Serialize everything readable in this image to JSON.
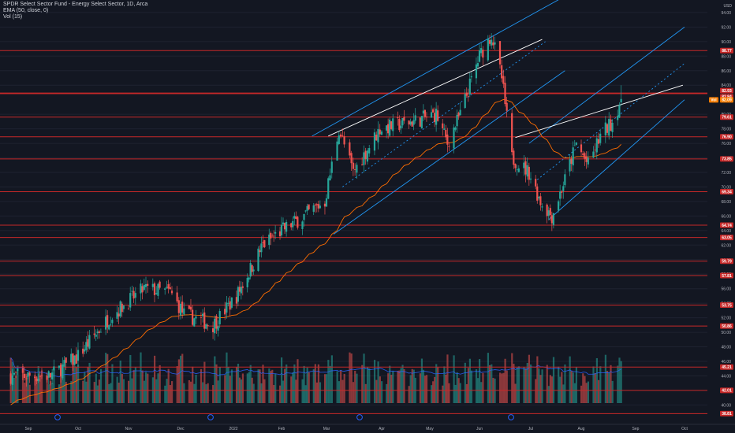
{
  "legend": {
    "title": "SPDR Select Sector Fund - Energy Select Sector, 1D, Arca",
    "ema": "EMA (50, close, 0)",
    "vol": "Vol (15)"
  },
  "price_axis": {
    "currency": "USD",
    "ticks": [
      "94.00",
      "92.00",
      "90.00",
      "88.00",
      "86.00",
      "84.00",
      "80.00",
      "78.00",
      "76.00",
      "74.00",
      "72.00",
      "70.00",
      "68.00",
      "66.00",
      "64.00",
      "62.00",
      "60.00",
      "58.00",
      "56.00",
      "54.00",
      "52.00",
      "50.00",
      "48.00",
      "46.00",
      "44.00",
      "42.00",
      "40.00"
    ],
    "levels": [
      "88.77",
      "82.93",
      "82.84",
      "79.61",
      "76.90",
      "73.85",
      "69.34",
      "64.74",
      "63.05",
      "59.79",
      "57.81",
      "53.75",
      "50.86",
      "45.21",
      "42.01",
      "38.81"
    ],
    "ema_tag": "Vol",
    "ema_value": "82.09"
  },
  "time_axis": {
    "labels": [
      "Sep",
      "Oct",
      "Nov",
      "Dec",
      "2022",
      "Feb",
      "Mar",
      "Apr",
      "May",
      "Jun",
      "Jul",
      "Aug",
      "Sep",
      "Oct"
    ]
  },
  "colors": {
    "background": "#131722",
    "up": "#26a69a",
    "down": "#ef5350",
    "level_line": "#c62828",
    "channel": "#2196f3",
    "ema": "#ff6d00",
    "trendline": "#ffffff",
    "vol_ma": "#2962ff"
  },
  "chart_data": {
    "type": "candlestick",
    "ylim": [
      38.2,
      95.4
    ],
    "ema_period": 50,
    "volume_ma_period": 15,
    "dividend_markers": [
      "Sep",
      "Dec",
      "Mar",
      "Jun"
    ],
    "anchors": [
      [
        "2021-08-23",
        44
      ],
      [
        "2021-09-15",
        44
      ],
      [
        "2021-09-30",
        46.5
      ],
      [
        "2021-10-20",
        52
      ],
      [
        "2021-11-10",
        56
      ],
      [
        "2021-11-25",
        55.5
      ],
      [
        "2021-12-03",
        52.5
      ],
      [
        "2021-12-20",
        51
      ],
      [
        "2022-01-03",
        55
      ],
      [
        "2022-01-20",
        62
      ],
      [
        "2022-02-01",
        64
      ],
      [
        "2022-02-15",
        66
      ],
      [
        "2022-02-28",
        68
      ],
      [
        "2022-03-08",
        78
      ],
      [
        "2022-03-16",
        72
      ],
      [
        "2022-03-31",
        78
      ],
      [
        "2022-04-20",
        79
      ],
      [
        "2022-05-05",
        80
      ],
      [
        "2022-05-12",
        76
      ],
      [
        "2022-05-20",
        80
      ],
      [
        "2022-06-01",
        88
      ],
      [
        "2022-06-08",
        91
      ],
      [
        "2022-06-14",
        85
      ],
      [
        "2022-06-20",
        74
      ],
      [
        "2022-06-30",
        72
      ],
      [
        "2022-07-07",
        68
      ],
      [
        "2022-07-14",
        66
      ],
      [
        "2022-07-22",
        71
      ],
      [
        "2022-07-29",
        76
      ],
      [
        "2022-08-05",
        73
      ],
      [
        "2022-08-12",
        77
      ],
      [
        "2022-08-19",
        79
      ],
      [
        "2022-08-24",
        82.1
      ]
    ]
  }
}
